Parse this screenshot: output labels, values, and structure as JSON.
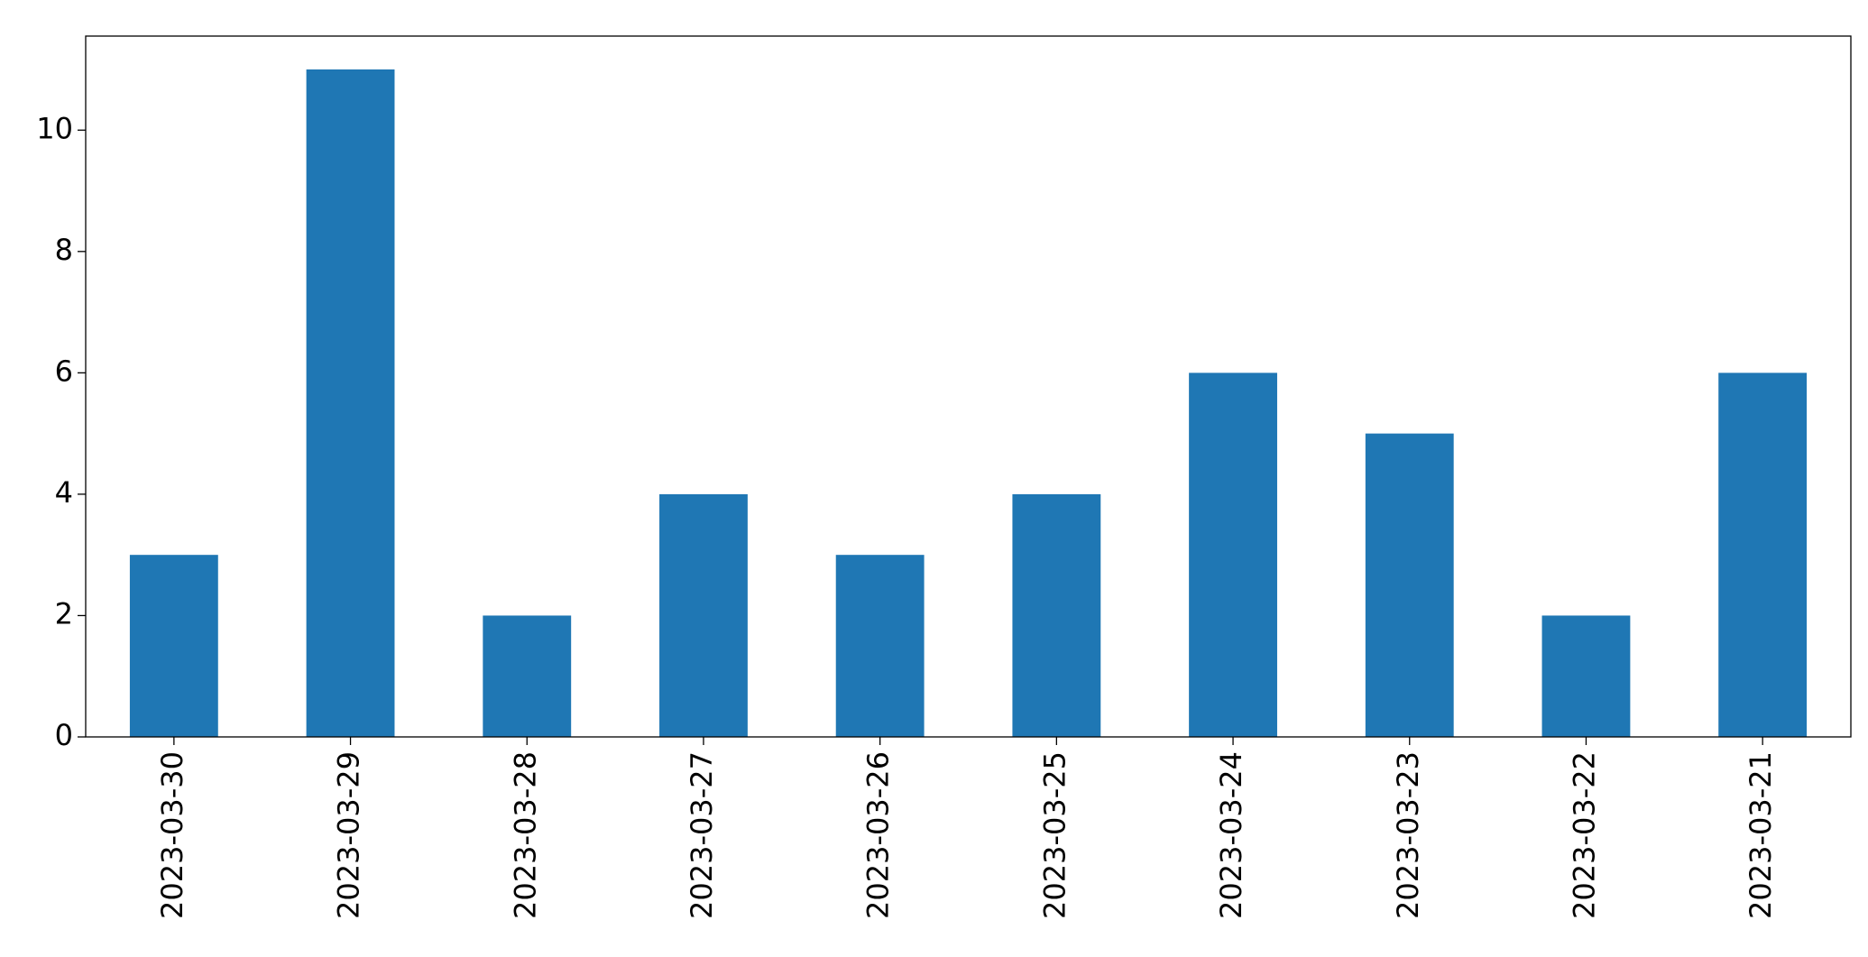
{
  "chart_data": {
    "type": "bar",
    "categories": [
      "2023-03-30",
      "2023-03-29",
      "2023-03-28",
      "2023-03-27",
      "2023-03-26",
      "2023-03-25",
      "2023-03-24",
      "2023-03-23",
      "2023-03-22",
      "2023-03-21"
    ],
    "values": [
      3,
      11,
      2,
      4,
      3,
      4,
      6,
      5,
      2,
      6
    ],
    "color": "#1f77b4",
    "ylim": [
      0,
      11.55
    ],
    "yticks": [
      0,
      2,
      4,
      6,
      8,
      10
    ],
    "grid": false
  }
}
